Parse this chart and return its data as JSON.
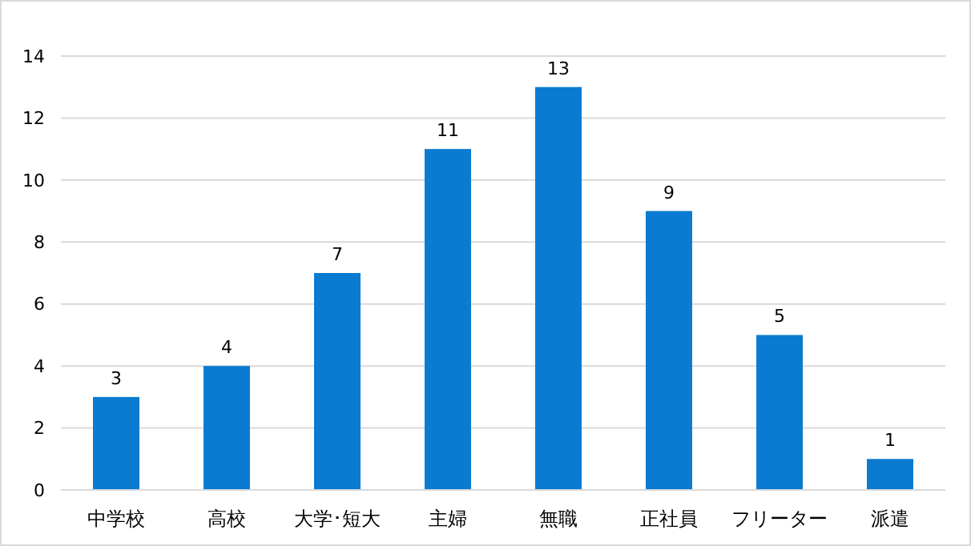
{
  "chart_data": {
    "type": "bar",
    "categories": [
      "中学校",
      "高校",
      "大学･短大",
      "主婦",
      "無職",
      "正社員",
      "フリーター",
      "派遣"
    ],
    "values": [
      3,
      4,
      7,
      11,
      13,
      9,
      5,
      1
    ],
    "color": "#0a7bd0",
    "ylim": [
      0,
      14
    ],
    "yticks": [
      0,
      2,
      4,
      6,
      8,
      10,
      12,
      14
    ],
    "grid": "y",
    "data_labels": true
  }
}
